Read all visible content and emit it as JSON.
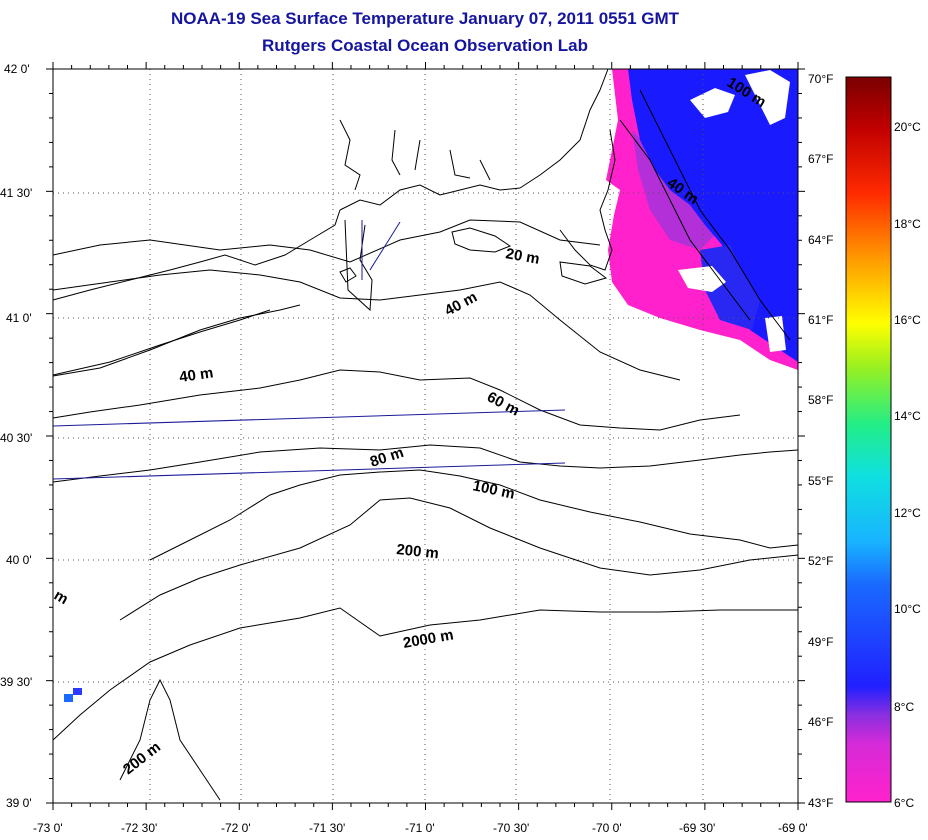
{
  "title": {
    "line1": "NOAA-19 Sea Surface Temperature January 07, 2011 0551 GMT",
    "line2": "Rutgers Coastal Ocean Observation Lab"
  },
  "map": {
    "lon_labels": [
      "-73 0'",
      "-72 30'",
      "-72 0'",
      "-71 30'",
      "-71 0'",
      "-70 30'",
      "-70 0'",
      "-69 30'",
      "-69 0'"
    ],
    "lat_labels": [
      "42 0'",
      "41 30'",
      "41 0'",
      "40 30'",
      "40 0'",
      "39 30'",
      "39 0'"
    ],
    "lon_range": [
      -73,
      -69
    ],
    "lat_range": [
      39,
      42
    ],
    "grid": "dotted",
    "depth_labels": [
      "20 m",
      "40 m",
      "40 m",
      "60 m",
      "80 m",
      "100 m",
      "200 m",
      "2000 m",
      "200 m",
      "100 m",
      "40 m",
      "m"
    ]
  },
  "colorbar": {
    "f_labels": [
      "70°F",
      "67°F",
      "64°F",
      "61°F",
      "58°F",
      "55°F",
      "52°F",
      "49°F",
      "46°F",
      "43°F"
    ],
    "c_labels": [
      "20°C",
      "18°C",
      "16°C",
      "14°C",
      "12°C",
      "10°C",
      "8°C",
      "6°C"
    ],
    "f_range": [
      43,
      70
    ],
    "colors": [
      "#ff22cc",
      "#9a2fe0",
      "#1a1aff",
      "#18b4ff",
      "#22ee88",
      "#ffff00",
      "#ff9900",
      "#ff1a00",
      "#8a0000"
    ]
  }
}
